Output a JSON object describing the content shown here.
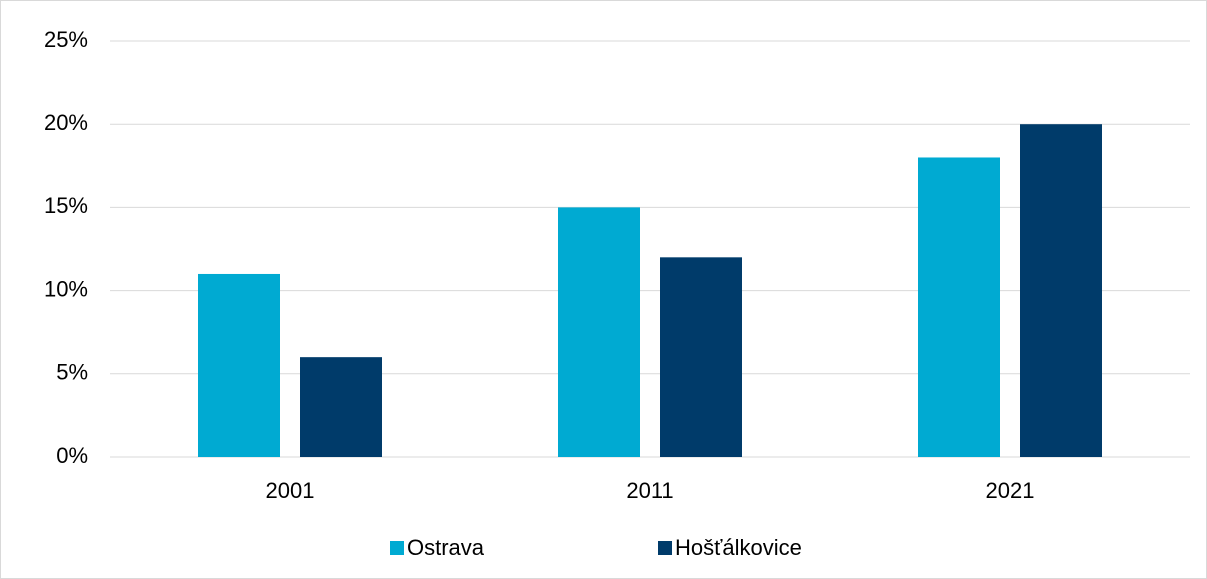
{
  "chart_data": {
    "type": "bar",
    "categories": [
      "2001",
      "2011",
      "2021"
    ],
    "series": [
      {
        "name": "Ostrava",
        "color": "#00aad2",
        "values": [
          11,
          15,
          18
        ]
      },
      {
        "name": "Hošťálkovice",
        "color": "#003b6a",
        "values": [
          6,
          12,
          20
        ]
      }
    ],
    "ylim": [
      0,
      25
    ],
    "yticks": [
      {
        "value": 0,
        "label": "0%"
      },
      {
        "value": 5,
        "label": "5%"
      },
      {
        "value": 10,
        "label": "10%"
      },
      {
        "value": 15,
        "label": "15%"
      },
      {
        "value": 20,
        "label": "20%"
      },
      {
        "value": 25,
        "label": "25%"
      }
    ],
    "grid": true,
    "legend": "bottom"
  }
}
